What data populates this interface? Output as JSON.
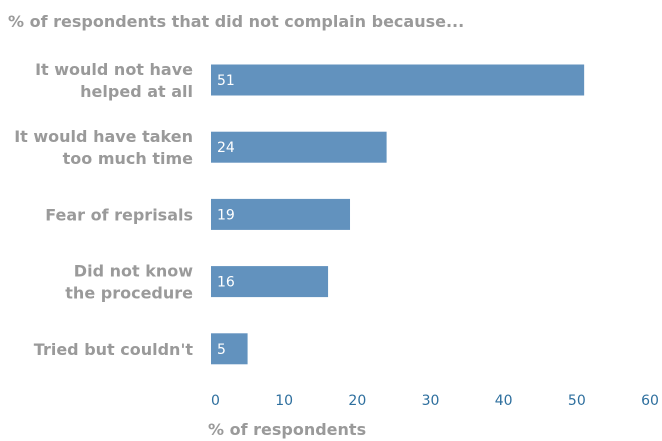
{
  "chart_data": {
    "type": "bar",
    "orientation": "horizontal",
    "title": "% of respondents that did not complain because...",
    "xlabel": "% of respondents",
    "ylabel": "",
    "categories": [
      [
        "It would not have",
        "helped at all"
      ],
      [
        "It would have taken",
        "too much time"
      ],
      [
        "Fear of reprisals"
      ],
      [
        "Did not know",
        "the procedure"
      ],
      [
        "Tried but couldn't"
      ]
    ],
    "values": [
      51,
      24,
      19,
      16,
      5
    ],
    "xlim": [
      0,
      60
    ],
    "xticks": [
      0,
      10,
      20,
      30,
      40,
      50,
      60
    ],
    "grid": false,
    "colors": {
      "bar": "#6292be",
      "title": "#9a9a9a",
      "ticks": "#2e6f9e",
      "value_label": "#ffffff"
    }
  }
}
